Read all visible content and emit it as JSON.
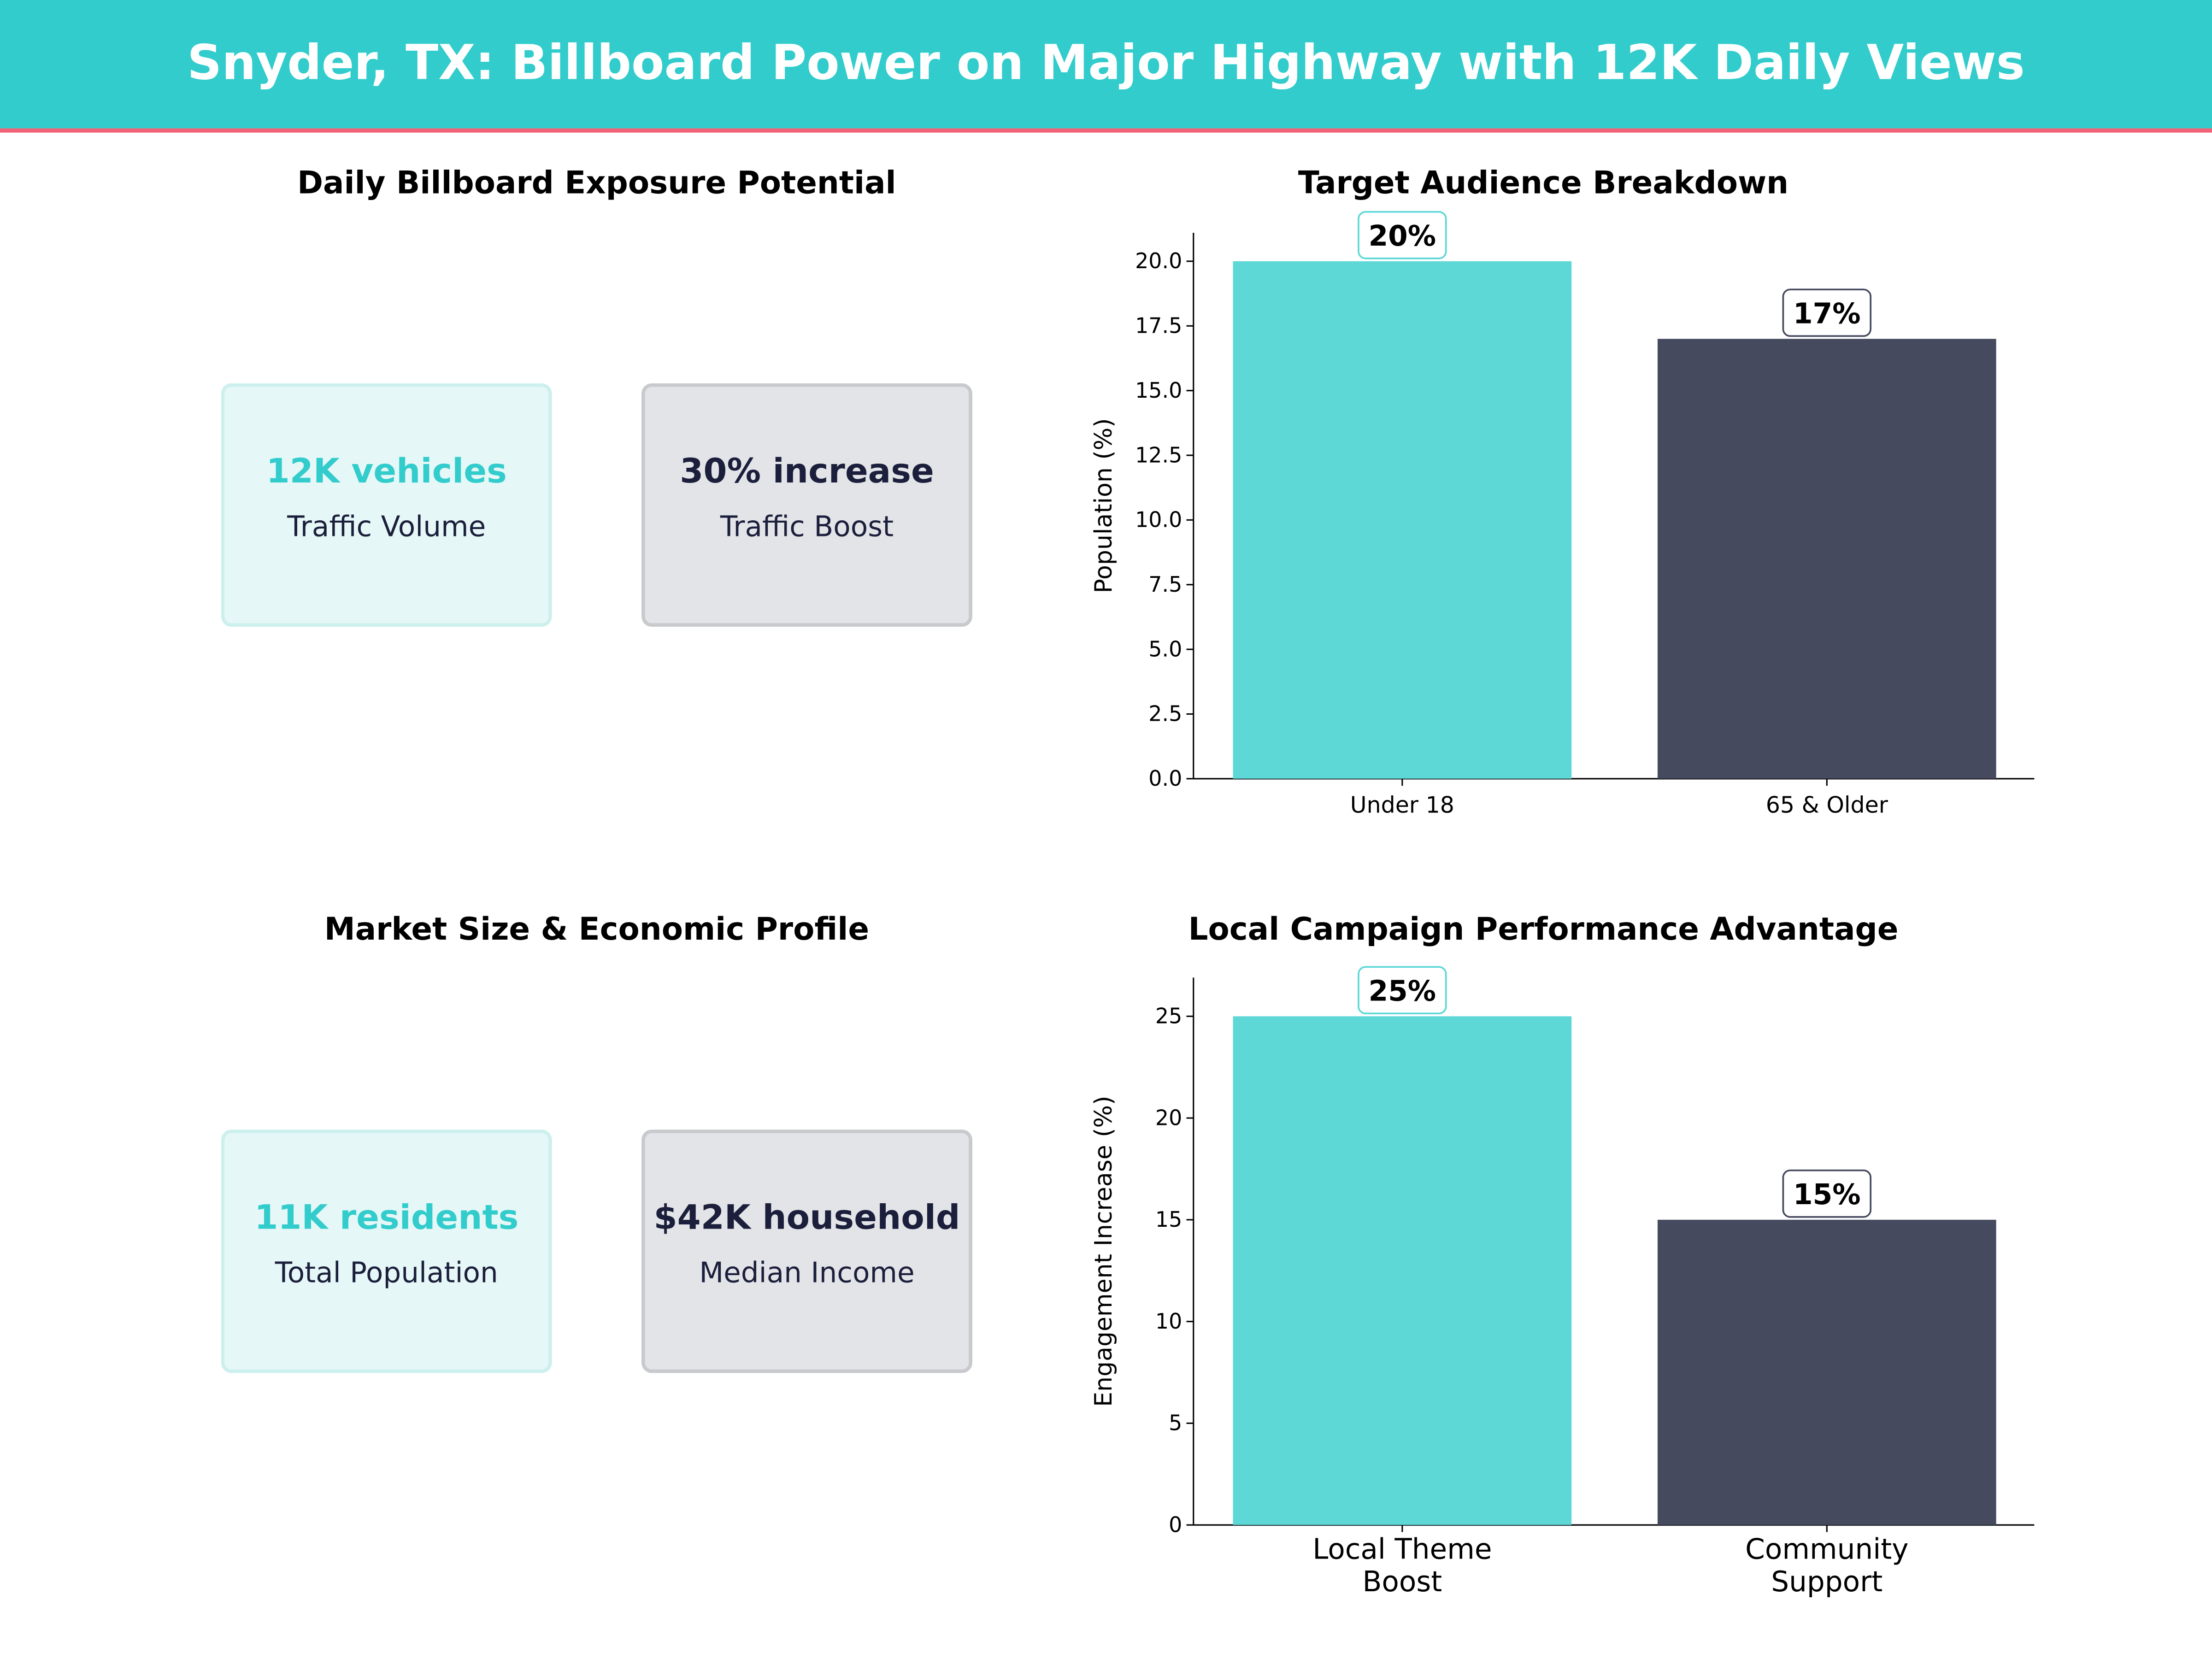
{
  "header": {
    "title": "Snyder, TX: Billboard Power on Major Highway with 12K Daily Views",
    "bg": "#33CCCC",
    "accent_line": "#F06277"
  },
  "panels": [
    {
      "title": "Daily Billboard Exposure Potential",
      "cards": [
        {
          "value": "12K vehicles",
          "label": "Traffic Volume",
          "style": "teal"
        },
        {
          "value": "30% increase",
          "label": "Traffic Boost",
          "style": "dark"
        }
      ]
    },
    {
      "title": "Market Size & Economic Profile",
      "cards": [
        {
          "value": "11K residents",
          "label": "Total Population",
          "style": "teal"
        },
        {
          "value": "$42K household",
          "label": "Median Income",
          "style": "dark"
        }
      ]
    }
  ],
  "colors": {
    "teal": "#5DD8D6",
    "dark": "#454A5F",
    "teal_text": "#33CCCC",
    "dark_text": "#1B1F3B"
  },
  "chart_data": [
    {
      "type": "bar",
      "title": "Target Audience Breakdown",
      "xlabel": "",
      "ylabel": "Population (%)",
      "categories": [
        "Under 18",
        "65 & Older"
      ],
      "values": [
        20,
        17
      ],
      "data_labels": [
        "20%",
        "17%"
      ],
      "ylim": [
        0,
        21.1
      ],
      "yticks": [
        "0.0",
        "2.5",
        "5.0",
        "7.5",
        "10.0",
        "12.5",
        "15.0",
        "17.5",
        "20.0"
      ],
      "ytick_values": [
        0,
        2.5,
        5,
        7.5,
        10,
        12.5,
        15,
        17.5,
        20
      ],
      "grid": false
    },
    {
      "type": "bar",
      "title": "Local Campaign Performance Advantage",
      "xlabel": "",
      "ylabel": "Engagement Increase (%)",
      "categories": [
        [
          "Local Theme",
          "Boost"
        ],
        [
          "Community",
          "Support"
        ]
      ],
      "values": [
        25,
        15
      ],
      "data_labels": [
        "25%",
        "15%"
      ],
      "ylim": [
        0,
        26.9
      ],
      "yticks": [
        "0",
        "5",
        "10",
        "15",
        "20",
        "25"
      ],
      "ytick_values": [
        0,
        5,
        10,
        15,
        20,
        25
      ],
      "grid": false
    }
  ]
}
